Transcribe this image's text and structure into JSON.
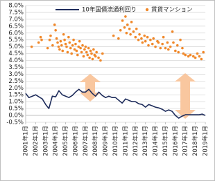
{
  "chart_data": {
    "type": "combo",
    "ylim": [
      -0.5,
      8.0
    ],
    "yticks": [
      {
        "value": -0.5,
        "label": "-0.5%"
      },
      {
        "value": 0.0,
        "label": "0.0%"
      },
      {
        "value": 0.5,
        "label": "0.5%"
      },
      {
        "value": 1.0,
        "label": "1.0%"
      },
      {
        "value": 1.5,
        "label": "1.5%"
      },
      {
        "value": 2.0,
        "label": "2.0%"
      },
      {
        "value": 2.5,
        "label": "2.5%"
      },
      {
        "value": 3.0,
        "label": "3.0%"
      },
      {
        "value": 3.5,
        "label": "3.5%"
      },
      {
        "value": 4.0,
        "label": "4.0%"
      },
      {
        "value": 4.5,
        "label": "4.5%"
      },
      {
        "value": 5.0,
        "label": "5.0%"
      },
      {
        "value": 5.5,
        "label": "5.5%"
      },
      {
        "value": 6.0,
        "label": "6.0%"
      },
      {
        "value": 6.5,
        "label": "6.5%"
      },
      {
        "value": 7.0,
        "label": "7.0%"
      },
      {
        "value": 7.5,
        "label": "7.5%"
      },
      {
        "value": 8.0,
        "label": "8.0%"
      }
    ],
    "xlim": [
      2001,
      2019
    ],
    "xticks": [
      {
        "value": 2001,
        "label": "2001年1月"
      },
      {
        "value": 2002,
        "label": "2002年1月"
      },
      {
        "value": 2003,
        "label": "2003年1月"
      },
      {
        "value": 2004,
        "label": "2004年1月"
      },
      {
        "value": 2005,
        "label": "2005年1月"
      },
      {
        "value": 2006,
        "label": "2006年1月"
      },
      {
        "value": 2007,
        "label": "2007年1月"
      },
      {
        "value": 2008,
        "label": "2008年1月"
      },
      {
        "value": 2009,
        "label": "2009年1月"
      },
      {
        "value": 2010,
        "label": "2010年1月"
      },
      {
        "value": 2011,
        "label": "2011年1月"
      },
      {
        "value": 2012,
        "label": "2012年1月"
      },
      {
        "value": 2013,
        "label": "2013年1月"
      },
      {
        "value": 2014,
        "label": "2014年1月"
      },
      {
        "value": 2015,
        "label": "2015年1月"
      },
      {
        "value": 2016,
        "label": "2016年1月"
      },
      {
        "value": 2017,
        "label": "2017年1月"
      },
      {
        "value": 2018,
        "label": "2018年1月"
      },
      {
        "value": 2019,
        "label": "2019年1月"
      }
    ],
    "grid": true,
    "series": [
      {
        "name": "10年国債流通利回り",
        "type": "line",
        "color": "#1f2d5c",
        "x": [
          2001.0,
          2001.33,
          2001.67,
          2002.0,
          2002.33,
          2002.67,
          2003.0,
          2003.33,
          2003.67,
          2004.0,
          2004.33,
          2004.67,
          2005.0,
          2005.33,
          2005.67,
          2006.0,
          2006.33,
          2006.67,
          2007.0,
          2007.33,
          2007.67,
          2008.0,
          2008.33,
          2008.67,
          2009.0,
          2009.33,
          2009.67,
          2010.0,
          2010.33,
          2010.67,
          2011.0,
          2011.33,
          2011.67,
          2012.0,
          2012.33,
          2012.67,
          2013.0,
          2013.33,
          2013.67,
          2014.0,
          2014.33,
          2014.67,
          2015.0,
          2015.33,
          2015.67,
          2016.0,
          2016.33,
          2016.67,
          2017.0,
          2017.33,
          2017.67,
          2018.0,
          2018.33,
          2018.67,
          2019.0
        ],
        "values": [
          1.6,
          1.3,
          1.4,
          1.5,
          1.35,
          1.2,
          0.8,
          0.5,
          1.4,
          1.35,
          1.8,
          1.5,
          1.4,
          1.3,
          1.45,
          1.7,
          1.9,
          1.7,
          1.7,
          1.9,
          1.6,
          1.4,
          1.7,
          1.45,
          1.3,
          1.4,
          1.3,
          1.3,
          1.1,
          0.9,
          1.2,
          1.1,
          1.0,
          1.0,
          0.85,
          0.8,
          0.6,
          0.8,
          0.7,
          0.6,
          0.55,
          0.45,
          0.3,
          0.4,
          0.3,
          0.0,
          -0.2,
          -0.05,
          0.05,
          0.05,
          0.05,
          0.05,
          0.05,
          0.1,
          0.0
        ]
      },
      {
        "name": "賃貸マンション",
        "type": "scatter",
        "color": "#f0882a",
        "x": [
          2001.6,
          2002.3,
          2002.5,
          2002.6,
          2003.2,
          2003.4,
          2003.5,
          2003.7,
          2003.9,
          2004.0,
          2004.1,
          2004.2,
          2004.3,
          2004.4,
          2004.5,
          2004.6,
          2004.7,
          2004.8,
          2004.9,
          2005.0,
          2005.1,
          2005.2,
          2005.3,
          2005.4,
          2005.5,
          2005.6,
          2005.7,
          2005.8,
          2005.9,
          2006.0,
          2006.1,
          2006.2,
          2006.3,
          2006.4,
          2006.5,
          2006.6,
          2006.7,
          2006.8,
          2006.9,
          2007.0,
          2007.1,
          2007.2,
          2007.3,
          2007.4,
          2007.5,
          2007.6,
          2007.7,
          2007.8,
          2007.9,
          2008.0,
          2008.1,
          2008.3,
          2008.5,
          2008.7,
          2009.8,
          2010.3,
          2010.5,
          2010.7,
          2010.9,
          2011.0,
          2011.1,
          2011.2,
          2011.4,
          2011.5,
          2011.6,
          2011.8,
          2012.0,
          2012.1,
          2012.3,
          2012.4,
          2012.6,
          2012.7,
          2012.9,
          2013.0,
          2013.2,
          2013.3,
          2013.5,
          2013.7,
          2013.8,
          2014.0,
          2014.2,
          2014.3,
          2014.5,
          2014.7,
          2014.8,
          2015.0,
          2015.2,
          2015.3,
          2015.5,
          2015.7,
          2015.8,
          2016.0,
          2016.2,
          2016.3,
          2016.5,
          2016.7,
          2016.8,
          2017.0,
          2017.3,
          2017.5,
          2017.8,
          2018.0,
          2018.2,
          2018.4,
          2018.6,
          2018.8
        ],
        "values": [
          5.0,
          5.3,
          5.7,
          5.5,
          4.9,
          5.5,
          5.8,
          5.1,
          6.6,
          6.2,
          5.6,
          5.3,
          5.0,
          4.8,
          5.4,
          5.1,
          4.7,
          5.9,
          5.5,
          5.2,
          5.0,
          4.6,
          5.7,
          5.3,
          4.9,
          4.5,
          5.1,
          5.5,
          4.8,
          5.2,
          4.7,
          4.4,
          5.0,
          5.4,
          4.9,
          4.6,
          5.1,
          4.3,
          4.8,
          5.0,
          4.6,
          4.4,
          4.9,
          4.2,
          4.7,
          4.5,
          4.1,
          4.8,
          4.4,
          4.3,
          4.6,
          4.2,
          4.0,
          4.5,
          5.8,
          5.6,
          6.2,
          6.9,
          6.4,
          7.2,
          6.0,
          6.6,
          6.3,
          5.9,
          6.8,
          6.1,
          5.7,
          6.3,
          5.5,
          5.9,
          5.6,
          5.3,
          5.8,
          5.4,
          5.7,
          5.1,
          5.5,
          5.2,
          5.6,
          5.0,
          5.4,
          5.3,
          4.9,
          5.2,
          5.7,
          4.9,
          5.3,
          4.8,
          5.0,
          6.1,
          5.3,
          4.7,
          5.1,
          4.6,
          5.5,
          4.9,
          4.5,
          4.4,
          4.3,
          4.4,
          4.3,
          4.2,
          4.5,
          4.3,
          4.1,
          4.6
        ]
      }
    ]
  }
}
